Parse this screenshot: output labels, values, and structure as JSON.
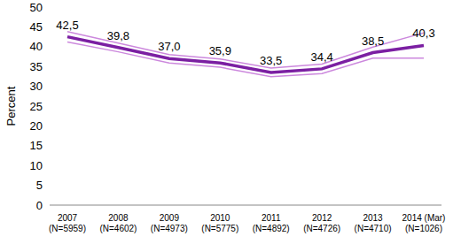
{
  "chart_data": {
    "type": "line",
    "categories": [
      "2007 (N=5959)",
      "2008 (N=4602)",
      "2009 (N=4973)",
      "2010 (N=5775)",
      "2011 (N=4892)",
      "2012 (N=4726)",
      "2013 (N=4710)",
      "2014 (Mar) (N=1026)"
    ],
    "y_label": "Percent",
    "series": [
      {
        "color": "#7B1FA2",
        "values": [
          42.5,
          39.8,
          37.0,
          35.9,
          33.5,
          34.4,
          38.5,
          40.3
        ],
        "value_labels": [
          "42,5",
          "39,8",
          "37,0",
          "35,9",
          "33,5",
          "34,4",
          "38,5",
          "40,3"
        ]
      },
      {
        "color": "#CC88DD",
        "values": [
          43.8,
          40.9,
          38.0,
          36.9,
          34.6,
          35.6,
          39.9,
          43.5
        ]
      },
      {
        "color": "#CC88DD",
        "values": [
          41.2,
          38.7,
          35.9,
          34.8,
          32.4,
          33.2,
          37.1,
          37.1
        ]
      }
    ],
    "ylim": [
      0,
      50
    ],
    "yticks": [
      0,
      5,
      10,
      15,
      20,
      25,
      30,
      35,
      40,
      45,
      50
    ],
    "grid": false,
    "data_labels": true
  }
}
